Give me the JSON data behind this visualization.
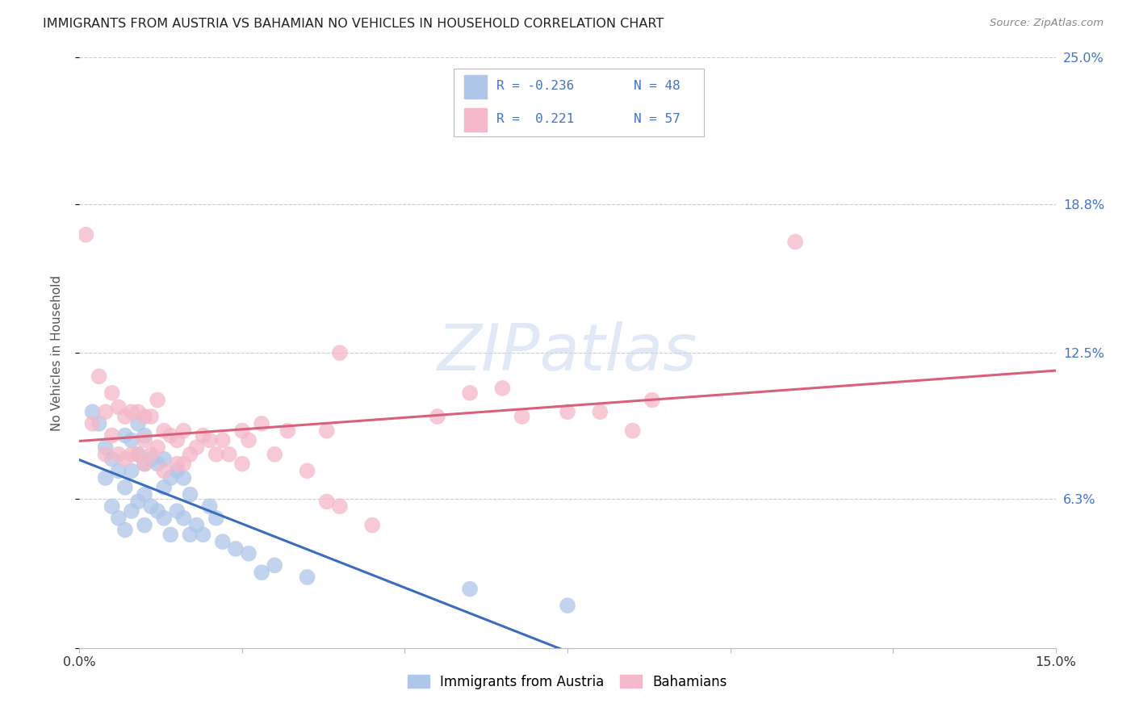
{
  "title": "IMMIGRANTS FROM AUSTRIA VS BAHAMIAN NO VEHICLES IN HOUSEHOLD CORRELATION CHART",
  "source": "Source: ZipAtlas.com",
  "ylabel": "No Vehicles in Household",
  "xlim": [
    0.0,
    0.15
  ],
  "ylim": [
    0.0,
    0.25
  ],
  "austria_color": "#aec6e8",
  "bahamas_color": "#f4b8c8",
  "austria_line_color": "#3b6cbf",
  "bahamas_line_color": "#d9607a",
  "blue_color": "#4472c4",
  "watermark_text": "ZIPatlas",
  "austria_scatter_x": [
    0.002,
    0.003,
    0.004,
    0.004,
    0.005,
    0.005,
    0.006,
    0.006,
    0.007,
    0.007,
    0.007,
    0.008,
    0.008,
    0.008,
    0.009,
    0.009,
    0.009,
    0.01,
    0.01,
    0.01,
    0.01,
    0.011,
    0.011,
    0.012,
    0.012,
    0.013,
    0.013,
    0.013,
    0.014,
    0.014,
    0.015,
    0.015,
    0.016,
    0.016,
    0.017,
    0.017,
    0.018,
    0.019,
    0.02,
    0.021,
    0.022,
    0.024,
    0.026,
    0.028,
    0.03,
    0.035,
    0.06,
    0.075
  ],
  "austria_scatter_y": [
    0.1,
    0.095,
    0.085,
    0.072,
    0.08,
    0.06,
    0.075,
    0.055,
    0.09,
    0.068,
    0.05,
    0.088,
    0.075,
    0.058,
    0.095,
    0.082,
    0.062,
    0.09,
    0.078,
    0.065,
    0.052,
    0.08,
    0.06,
    0.078,
    0.058,
    0.08,
    0.068,
    0.055,
    0.072,
    0.048,
    0.075,
    0.058,
    0.072,
    0.055,
    0.065,
    0.048,
    0.052,
    0.048,
    0.06,
    0.055,
    0.045,
    0.042,
    0.04,
    0.032,
    0.035,
    0.03,
    0.025,
    0.018
  ],
  "bahamas_scatter_x": [
    0.001,
    0.002,
    0.003,
    0.004,
    0.004,
    0.005,
    0.005,
    0.006,
    0.006,
    0.007,
    0.007,
    0.008,
    0.008,
    0.009,
    0.009,
    0.01,
    0.01,
    0.01,
    0.011,
    0.011,
    0.012,
    0.012,
    0.013,
    0.013,
    0.014,
    0.015,
    0.015,
    0.016,
    0.016,
    0.017,
    0.018,
    0.019,
    0.02,
    0.021,
    0.022,
    0.023,
    0.025,
    0.025,
    0.026,
    0.028,
    0.03,
    0.032,
    0.035,
    0.038,
    0.04,
    0.038,
    0.045,
    0.04,
    0.055,
    0.06,
    0.068,
    0.065,
    0.075,
    0.08,
    0.085,
    0.088,
    0.11
  ],
  "bahamas_scatter_y": [
    0.175,
    0.095,
    0.115,
    0.1,
    0.082,
    0.108,
    0.09,
    0.102,
    0.082,
    0.098,
    0.08,
    0.1,
    0.082,
    0.1,
    0.082,
    0.098,
    0.088,
    0.078,
    0.098,
    0.082,
    0.105,
    0.085,
    0.092,
    0.075,
    0.09,
    0.088,
    0.078,
    0.092,
    0.078,
    0.082,
    0.085,
    0.09,
    0.088,
    0.082,
    0.088,
    0.082,
    0.092,
    0.078,
    0.088,
    0.095,
    0.082,
    0.092,
    0.075,
    0.062,
    0.06,
    0.092,
    0.052,
    0.125,
    0.098,
    0.108,
    0.098,
    0.11,
    0.1,
    0.1,
    0.092,
    0.105,
    0.172
  ]
}
